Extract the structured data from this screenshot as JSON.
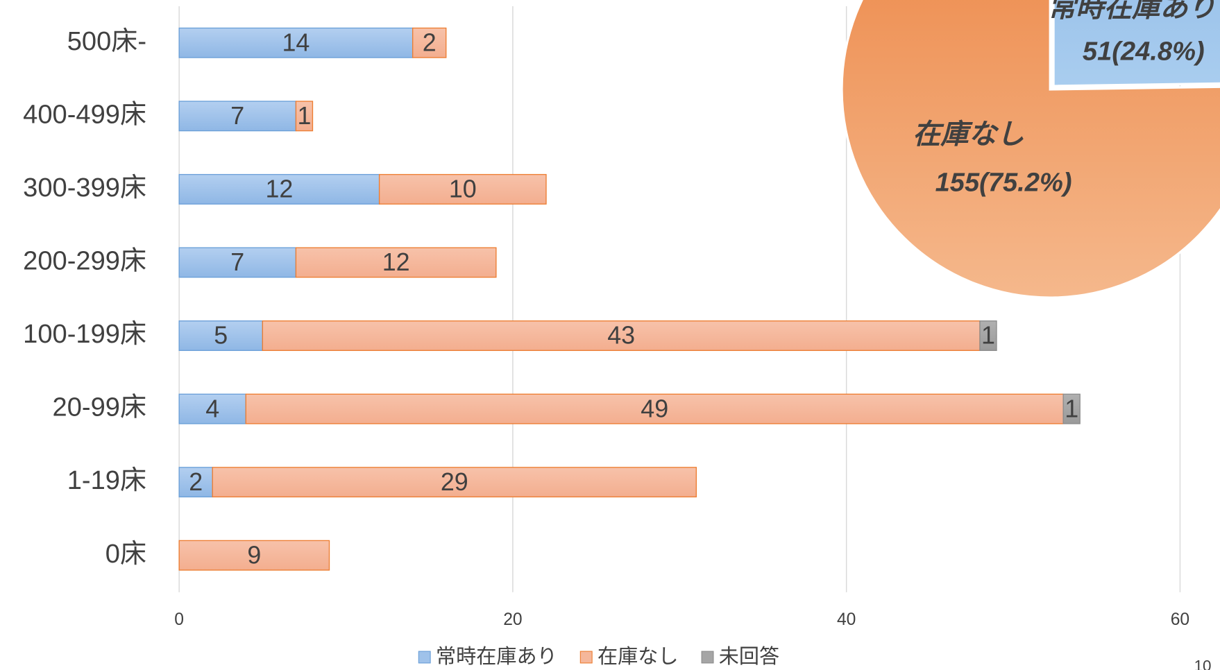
{
  "chart_data": [
    {
      "type": "bar",
      "orientation": "horizontal",
      "stacked": true,
      "categories": [
        "500床-",
        "400-499床",
        "300-399床",
        "200-299床",
        "100-199床",
        "20-99床",
        "1-19床",
        "0床"
      ],
      "series": [
        {
          "name": "常時在庫あり",
          "color": "#9fc2ea",
          "values": [
            14,
            7,
            12,
            7,
            5,
            4,
            2,
            null
          ]
        },
        {
          "name": "在庫なし",
          "color": "#f5b79b",
          "values": [
            2,
            1,
            10,
            12,
            43,
            49,
            29,
            9
          ]
        },
        {
          "name": "未回答",
          "color": "#a5a5a5",
          "values": [
            null,
            null,
            null,
            null,
            1,
            1,
            null,
            null
          ]
        }
      ],
      "xlim": [
        0,
        60
      ],
      "xticks": [
        0,
        20,
        40,
        60
      ],
      "grid": true,
      "legend": "bottom"
    },
    {
      "type": "pie",
      "categories": [
        "常時在庫あり",
        "在庫なし"
      ],
      "values": [
        51,
        155
      ],
      "value_labels": [
        "51(24.8%)",
        "155(75.2%)"
      ],
      "colors": [
        "#9dc3e6",
        "#f0985c"
      ]
    }
  ],
  "page_number": "10"
}
